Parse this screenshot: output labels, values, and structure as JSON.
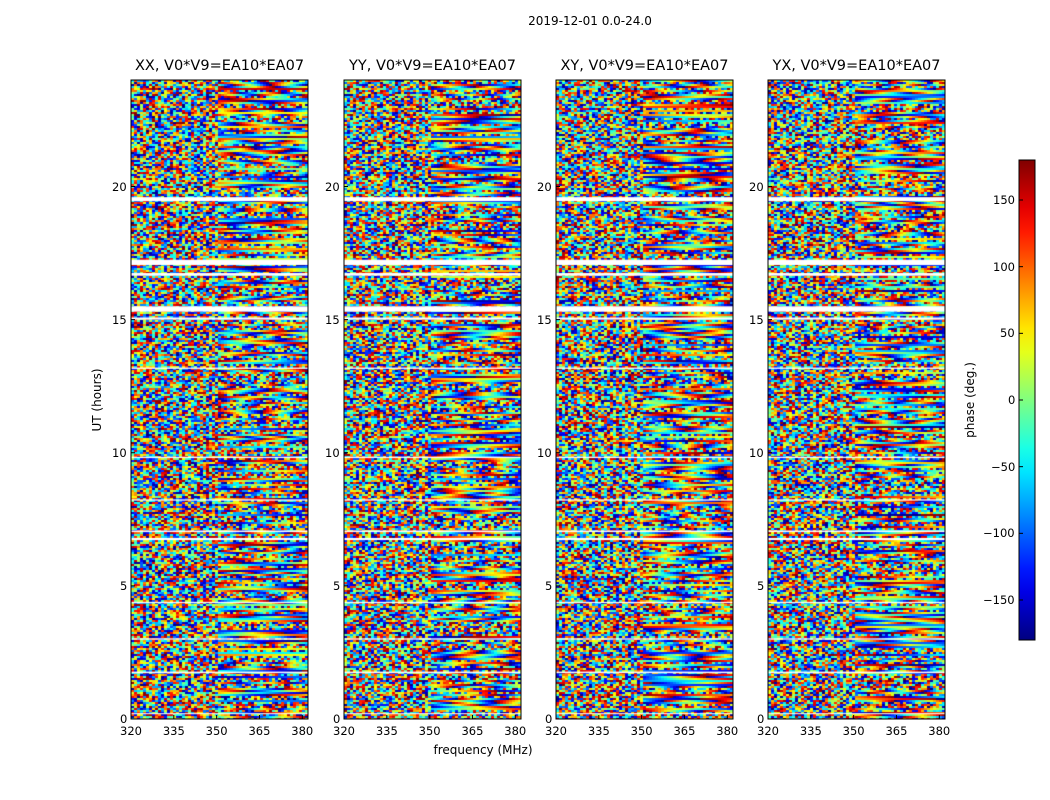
{
  "chart_data": {
    "type": "heatmap",
    "title": "2019-12-01 0.0-24.0",
    "xlabel": "frequency (MHz)",
    "ylabel": "UT (hours)",
    "xlim": [
      320,
      382
    ],
    "ylim": [
      0,
      24
    ],
    "xticks": [
      320,
      335,
      350,
      365,
      380
    ],
    "yticks": [
      0,
      5,
      10,
      15,
      20
    ],
    "panels": [
      {
        "title": "XX, V0*V9=EA10*EA07"
      },
      {
        "title": "YY, V0*V9=EA10*EA07"
      },
      {
        "title": "XY, V0*V9=EA10*EA07"
      },
      {
        "title": "YX, V0*V9=EA10*EA07"
      }
    ],
    "colorbar": {
      "label": "phase (deg.)",
      "colormap": "jet",
      "range": [
        -180,
        180
      ],
      "ticks": [
        -150,
        -100,
        -50,
        0,
        50,
        100,
        150
      ],
      "tick_labels": [
        "−150",
        "−100",
        "−50",
        "0",
        "50",
        "100",
        "150"
      ]
    },
    "gap_ranges_ut": [
      [
        19.45,
        19.6
      ],
      [
        17.05,
        17.25
      ],
      [
        16.65,
        16.75
      ],
      [
        15.3,
        15.5
      ],
      [
        15.0,
        15.08
      ],
      [
        13.15,
        13.2
      ],
      [
        9.8,
        9.85
      ],
      [
        8.2,
        8.25
      ],
      [
        7.02,
        7.08
      ],
      [
        6.72,
        6.8
      ],
      [
        4.35,
        4.4
      ],
      [
        2.98,
        3.03
      ],
      [
        1.72,
        1.78
      ],
      [
        0.18,
        0.22
      ]
    ]
  }
}
